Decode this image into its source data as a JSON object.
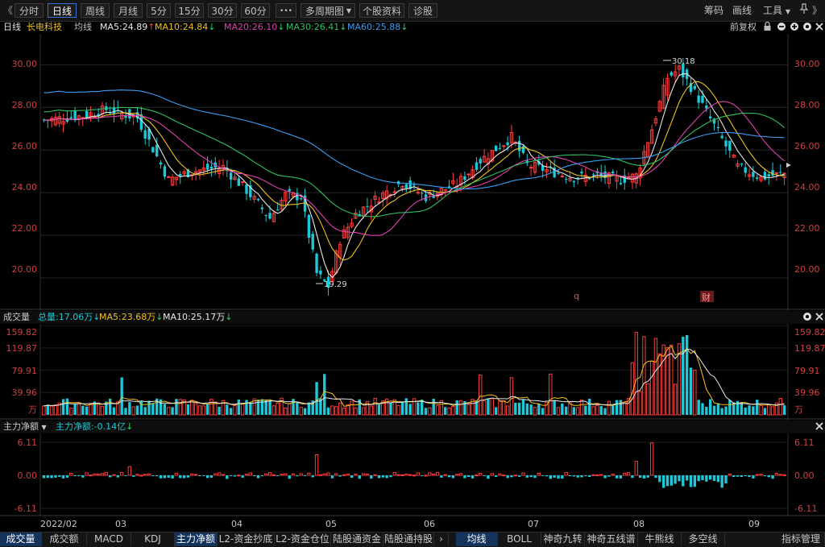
{
  "toolbar": {
    "collapse_glyph": "《",
    "periods": [
      "分时",
      "日线",
      "周线",
      "月线",
      "5分",
      "15分",
      "30分",
      "60分"
    ],
    "active_period_index": 1,
    "more_glyph": "•••",
    "multi_period": "多周期图",
    "stock_info": "个股资料",
    "diagnose": "诊股",
    "right": {
      "chips": "筹码",
      "draw": "画线",
      "tools": "工具",
      "expand_glyph": "》"
    }
  },
  "legend": {
    "period": "日线",
    "stock_name": "长电科技",
    "ma_label": "均线",
    "ma_items": [
      {
        "text": "MA5:24.89",
        "arrow": "↑",
        "color": "#e8e8e8",
        "arrow_color": "#ff4040"
      },
      {
        "text": "MA10:24.84",
        "arrow": "↓",
        "color": "#f0c020",
        "arrow_color": "#30d060"
      },
      {
        "text": "MA20:26.10",
        "arrow": "↓",
        "color": "#e040b0",
        "arrow_color": "#30d060"
      },
      {
        "text": "MA30:26.41",
        "arrow": "↓",
        "color": "#30c060",
        "arrow_color": "#30d060"
      },
      {
        "text": "MA60:25.88",
        "arrow": "↓",
        "color": "#3a9cf0",
        "arrow_color": "#30d060"
      }
    ],
    "adjust": "前复权"
  },
  "price_axis": {
    "ticks": [
      "30.00",
      "28.00",
      "26.00",
      "24.00",
      "22.00",
      "20.00"
    ],
    "values": [
      30,
      28,
      26,
      24,
      22,
      20
    ],
    "min": 18.6,
    "max": 31.3,
    "high_label": "30.18",
    "low_label": "19.29",
    "event_q": "q",
    "event_cai": "财"
  },
  "volume": {
    "title": "成交量",
    "total": "总量:17.06万",
    "total_arrow": "↓",
    "ma5": "MA5:23.68万",
    "ma5_arrow": "↓",
    "ma10": "MA10:25.17万",
    "ma10_arrow": "↓",
    "ticks": [
      "159.82",
      "119.87",
      "79.91",
      "39.96"
    ],
    "tick_values": [
      159.82,
      119.87,
      79.91,
      39.96
    ],
    "unit": "万",
    "max": 160
  },
  "flow": {
    "title": "主力净额",
    "value": "主力净额:-0.14亿",
    "value_arrow": "↓",
    "ticks": [
      "6.11",
      "0.00",
      "-6.11"
    ],
    "tick_values": [
      6.11,
      0,
      -6.11
    ]
  },
  "date_axis": [
    "2022/02",
    "03",
    "04",
    "05",
    "06",
    "07",
    "08",
    "09"
  ],
  "bottom_tabs": {
    "left": [
      "成交量",
      "成交额",
      "MACD",
      "KDJ",
      "主力净额",
      "L2-资金抄底",
      "L2-资金仓位",
      "陆股通资金",
      "陆股通持股"
    ],
    "left_active": [
      0,
      4
    ],
    "nav_glyph": "›",
    "right": [
      "均线",
      "BOLL",
      "神奇九转",
      "神奇五线谱",
      "牛熊线",
      "多空线",
      "指标管理"
    ],
    "right_active": 0
  },
  "colors": {
    "up": "#ff3b3b",
    "down": "#1ec8d8",
    "grid": "#2a2a2a",
    "axis_text": "#d04040"
  }
}
